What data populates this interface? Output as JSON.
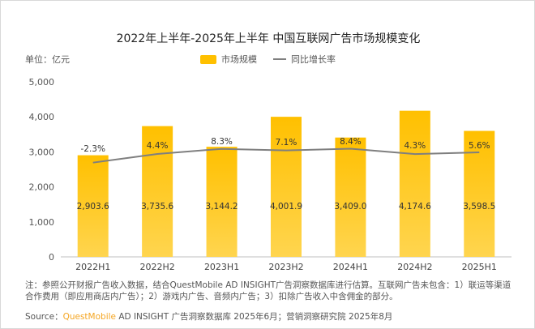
{
  "title": "2022年上半年-2025年上半年 中国互联网广告市场规模变化",
  "unit": "单位：亿元",
  "note": "注：参照公开财报广告收入数据，结合QuestMobile AD INSIGHT广告洞察数据库进行估算。互联网广告未包含：1）联运等渠道合作费用（即应用商店内广告）；2）游戏内广告、音频内广告；3）扣除广告收入中含佣金的部分。",
  "source": {
    "label": "Source：",
    "brand": "QuestMobile",
    "rest": " AD INSIGHT 广告洞察数据库 2025年6月；营销洞察研究院 2025年8月"
  },
  "chart_data": {
    "type": "bar+line",
    "categories": [
      "2022H1",
      "2022H2",
      "2023H1",
      "2023H2",
      "2024H1",
      "2024H2",
      "2025H1"
    ],
    "series": [
      {
        "name": "市场规模",
        "type": "bar",
        "color": "#FFC000",
        "values": [
          2903.6,
          3735.6,
          3144.2,
          4001.9,
          3409.0,
          4174.6,
          3598.5
        ],
        "labels": [
          "2,903.6",
          "3,735.6",
          "3,144.2",
          "4,001.9",
          "3,409.0",
          "4,174.6",
          "3,598.5"
        ]
      },
      {
        "name": "同比增长率",
        "type": "line",
        "color": "#7f7f7f",
        "values": [
          -2.3,
          4.4,
          8.3,
          7.1,
          8.4,
          4.3,
          5.6
        ],
        "labels": [
          "-2.3%",
          "4.4%",
          "8.3%",
          "7.1%",
          "8.4%",
          "4.3%",
          "5.6%"
        ]
      }
    ],
    "ylim": [
      0,
      5000
    ],
    "yticks": [
      "0",
      "1,000",
      "2,000",
      "3,000",
      "4,000",
      "5,000"
    ],
    "grid": false,
    "legend": "top-center"
  }
}
